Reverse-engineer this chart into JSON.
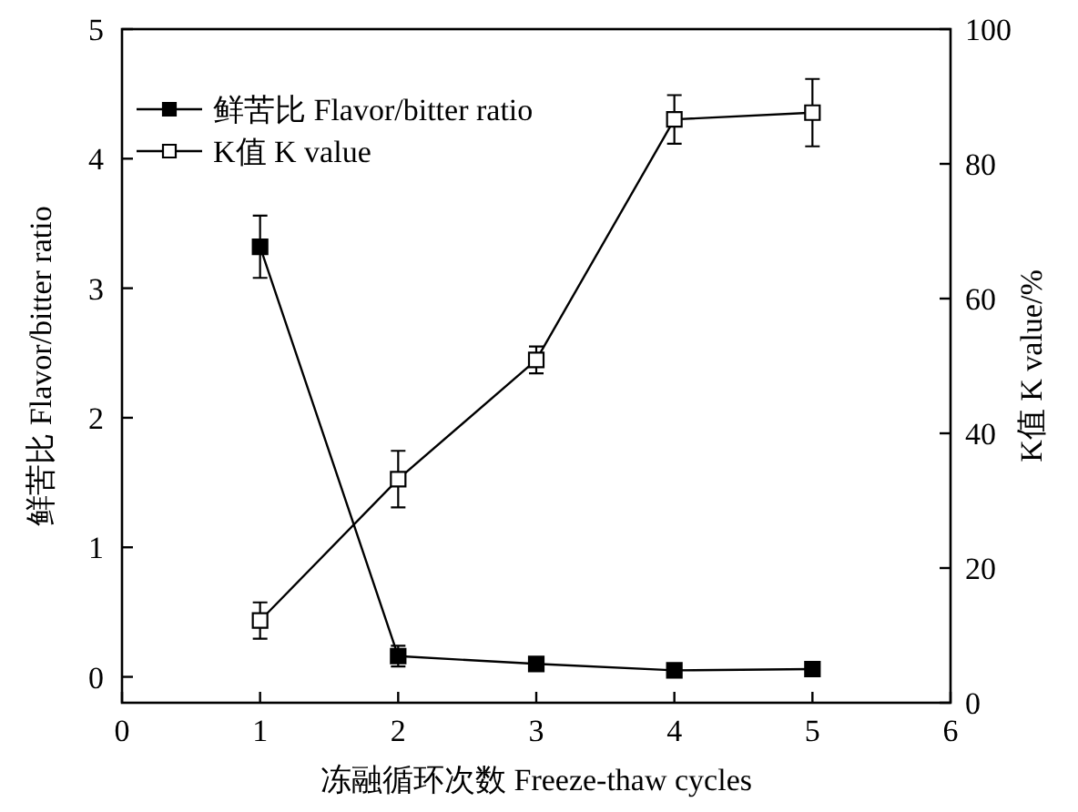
{
  "chart_data": {
    "type": "line",
    "xlabel": "冻融循环次数 Freeze-thaw cycles",
    "ylabel": "鲜苦比 Flavor/bitter ratio",
    "y2label": "K值 K value/%",
    "x": [
      1,
      2,
      3,
      4,
      5
    ],
    "xlim": [
      0,
      6
    ],
    "xticks": [
      0,
      1,
      2,
      3,
      4,
      5,
      6
    ],
    "ylim": [
      -0.2,
      5
    ],
    "yticks": [
      0,
      1,
      2,
      3,
      4,
      5
    ],
    "y2lim": [
      0,
      100
    ],
    "y2ticks": [
      0,
      20,
      40,
      60,
      80,
      100
    ],
    "legend": "top left",
    "marker": "square",
    "line_style": "solid",
    "series": [
      {
        "name": "鲜苦比 Flavor/bitter ratio",
        "color": "#000000",
        "values": [
          3.32,
          0.16,
          0.1,
          0.05,
          0.06
        ],
        "errors": [
          0.24,
          0.08,
          null,
          null,
          null
        ]
      },
      {
        "name": "K值 K value",
        "color": "#000000",
        "axis": "y2",
        "values": [
          12.2,
          33.2,
          50.9,
          86.6,
          87.6
        ],
        "errors": [
          2.7,
          4.2,
          2,
          3.6,
          5
        ]
      }
    ]
  }
}
